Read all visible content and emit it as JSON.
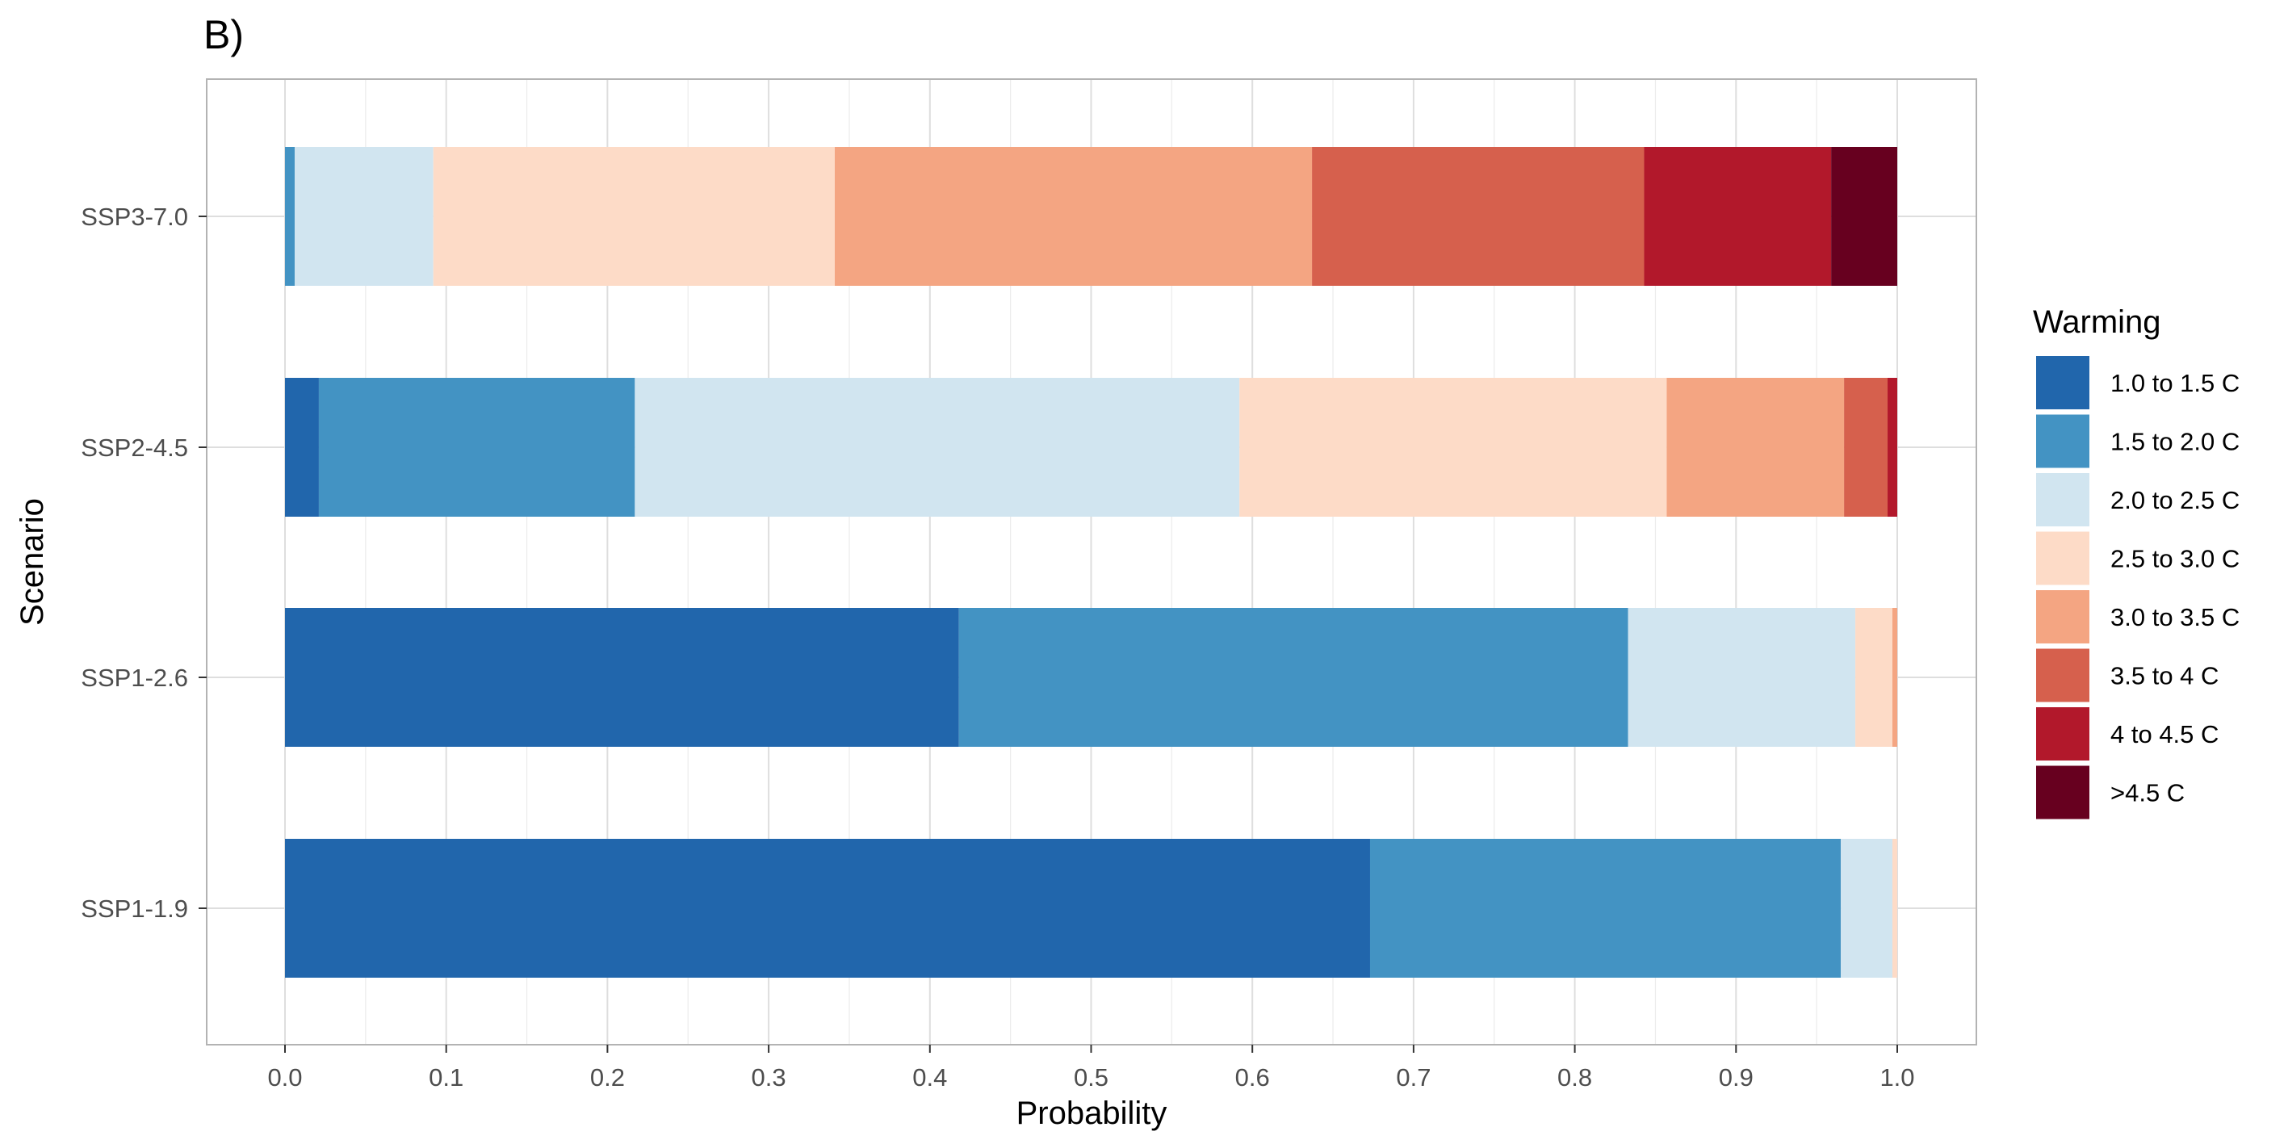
{
  "chart_data": {
    "type": "bar",
    "orientation": "horizontal",
    "stacked": true,
    "panel_tag": "B)",
    "title": "",
    "xlabel": "Probability",
    "ylabel": "Scenario",
    "xlim": [
      0,
      1
    ],
    "x_ticks": [
      "0.0",
      "0.1",
      "0.2",
      "0.3",
      "0.4",
      "0.5",
      "0.6",
      "0.7",
      "0.8",
      "0.9",
      "1.0"
    ],
    "grid": true,
    "legend_title": "Warming",
    "legend_position": "right",
    "categories": [
      "SSP1-1.9",
      "SSP1-2.6",
      "SSP2-4.5",
      "SSP3-7.0"
    ],
    "series": [
      {
        "name": "1.0 to 1.5 C",
        "color": "#2166ac",
        "values": [
          0.673,
          0.418,
          0.021,
          0.0
        ]
      },
      {
        "name": "1.5 to 2.0 C",
        "color": "#4393c3",
        "values": [
          0.292,
          0.415,
          0.196,
          0.006
        ]
      },
      {
        "name": "2.0 to 2.5 C",
        "color": "#d1e5f0",
        "values": [
          0.032,
          0.141,
          0.375,
          0.086
        ]
      },
      {
        "name": "2.5 to 3.0 C",
        "color": "#fddbc7",
        "values": [
          0.003,
          0.023,
          0.265,
          0.249
        ]
      },
      {
        "name": "3.0 to 3.5 C",
        "color": "#f4a582",
        "values": [
          0.0,
          0.003,
          0.11,
          0.296
        ]
      },
      {
        "name": "3.5 to 4 C",
        "color": "#d6604d",
        "values": [
          0.0,
          0.0,
          0.027,
          0.206
        ]
      },
      {
        "name": "4 to 4.5 C",
        "color": "#b2182b",
        "values": [
          0.0,
          0.0,
          0.006,
          0.116
        ]
      },
      {
        "name": ">4.5 C",
        "color": "#67001f",
        "values": [
          0.0,
          0.0,
          0.0,
          0.041
        ]
      }
    ]
  }
}
